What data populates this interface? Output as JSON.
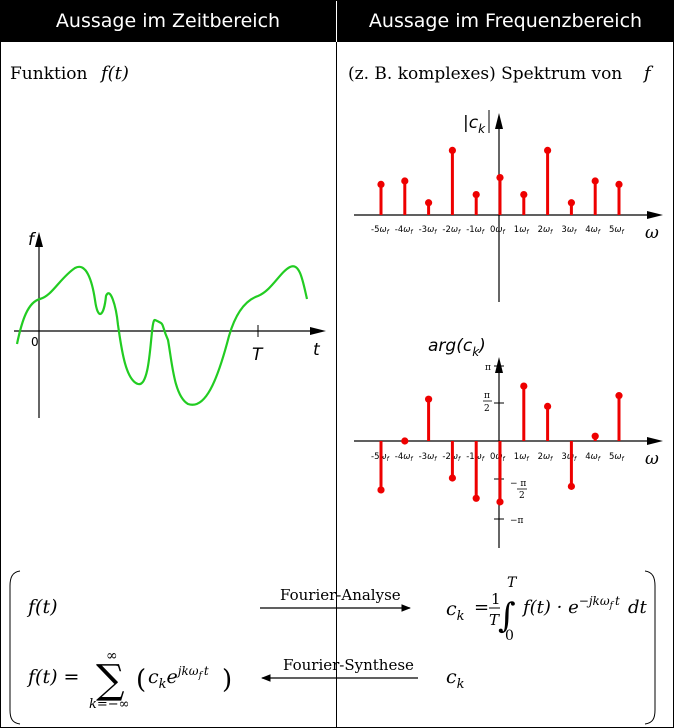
{
  "header": {
    "time_title": "Aussage im Zeitbereich",
    "freq_title": "Aussage im Frequenzbereich"
  },
  "time_panel": {
    "caption_word": "Funktion",
    "caption_math": "f(t)",
    "y_axis_label": "f",
    "x_axis_label": "t",
    "origin_label": "0",
    "period_label": "T"
  },
  "freq_panel": {
    "caption_text": "(z. B. komplexes) Spektrum von",
    "caption_math": "f",
    "magnitude_label": "|c",
    "magnitude_sub": "k",
    "phase_label": "arg(c",
    "phase_sub": "k",
    "phase_label_close": ")",
    "omega_label": "ω",
    "pi_label": "π",
    "neg_pi_label": "−π",
    "half_pi_num": "π",
    "half_pi_den": "2",
    "neg_half_pi": "− π",
    "neg_half_pi_den": "2"
  },
  "chart_data": [
    {
      "type": "line",
      "title": "",
      "xlabel": "t",
      "ylabel": "f",
      "description_of_curve": "one period of a periodic signal",
      "x_ticks": [
        "0",
        "T"
      ]
    },
    {
      "type": "bar",
      "ylabel": "|ck|",
      "xlabel": "ω",
      "categories": [
        "-5ωf",
        "-4ωf",
        "-3ωf",
        "-2ωf",
        "-1ωf",
        "0ωf",
        "1ωf",
        "2ωf",
        "3ωf",
        "4ωf",
        "5ωf"
      ],
      "values": [
        0.45,
        0.5,
        0.18,
        0.95,
        0.3,
        0.55,
        0.3,
        0.95,
        0.18,
        0.5,
        0.45
      ],
      "color": "#ee0000"
    },
    {
      "type": "bar",
      "ylabel": "arg(ck)",
      "xlabel": "ω",
      "categories": [
        "-5ωf",
        "-4ωf",
        "-3ωf",
        "-2ωf",
        "-1ωf",
        "0ωf",
        "1ωf",
        "2ωf",
        "3ωf",
        "4ωf",
        "5ωf"
      ],
      "values": [
        -2.05,
        0.0,
        1.75,
        -1.55,
        -2.4,
        -2.55,
        2.3,
        1.45,
        -1.9,
        0.2,
        1.9
      ],
      "ylim": [
        -3.1416,
        3.1416
      ],
      "y_ticks": [
        "π",
        "π/2",
        "−π/2",
        "−π"
      ],
      "color": "#ee0000"
    }
  ],
  "tick_parts": {
    "prefixes": [
      "-5",
      "-4",
      "-3",
      "-2",
      "-1",
      "0",
      "1",
      "2",
      "3",
      "4",
      "5"
    ],
    "omega": "ω",
    "sub": "f"
  },
  "formulas": {
    "analysis_label": "Fourier-Analyse",
    "synthesis_label": "Fourier-Synthese",
    "left_top": "f(t)",
    "left_bottom_lhs": "f(t) =",
    "sum_upper": "∞",
    "sum_lower": "k=−∞",
    "sigma": "∑",
    "term_c": "c",
    "term_k": "k",
    "term_e": "e",
    "term_exp": "jkω",
    "term_exp_f": "f",
    "term_exp_t": "t",
    "ck_lhs": "c",
    "ck_sub": "k",
    "eq": "=",
    "frac_num": "1",
    "frac_den": "T",
    "int_upper": "T",
    "int_lower": "0",
    "integral": "∫",
    "integrand": "f(t) · e",
    "int_exp": "−jkω",
    "int_exp_f": "f",
    "int_exp_t": "t",
    "dt": "dt",
    "right_bottom": "c",
    "right_bottom_sub": "k"
  }
}
